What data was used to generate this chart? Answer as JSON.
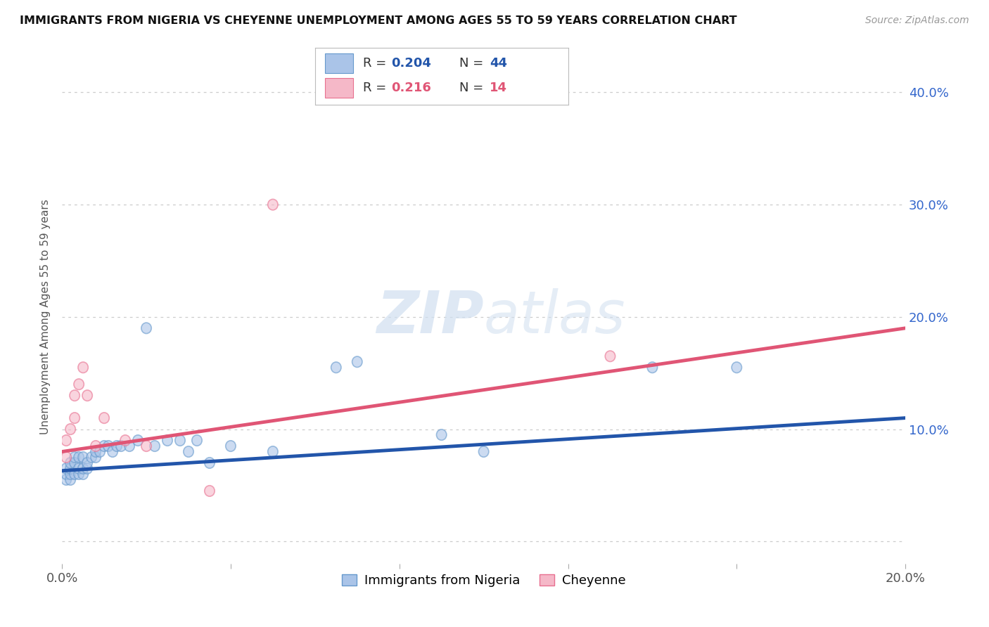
{
  "title": "IMMIGRANTS FROM NIGERIA VS CHEYENNE UNEMPLOYMENT AMONG AGES 55 TO 59 YEARS CORRELATION CHART",
  "source": "Source: ZipAtlas.com",
  "ylabel": "Unemployment Among Ages 55 to 59 years",
  "xlim": [
    0.0,
    0.2
  ],
  "ylim": [
    -0.02,
    0.42
  ],
  "yticks": [
    0.0,
    0.1,
    0.2,
    0.3,
    0.4
  ],
  "xticks": [
    0.0,
    0.04,
    0.08,
    0.12,
    0.16,
    0.2
  ],
  "blue_color": "#aac4e8",
  "blue_edge_color": "#6699cc",
  "pink_color": "#f5b8c8",
  "pink_edge_color": "#e87090",
  "blue_line_color": "#2255aa",
  "pink_line_color": "#e05575",
  "right_tick_color": "#3366cc",
  "watermark_color": "#d0dff0",
  "blue_x": [
    0.001,
    0.001,
    0.001,
    0.002,
    0.002,
    0.002,
    0.002,
    0.003,
    0.003,
    0.003,
    0.004,
    0.004,
    0.004,
    0.005,
    0.005,
    0.005,
    0.006,
    0.006,
    0.007,
    0.008,
    0.008,
    0.009,
    0.01,
    0.011,
    0.012,
    0.013,
    0.014,
    0.016,
    0.018,
    0.02,
    0.022,
    0.025,
    0.028,
    0.03,
    0.032,
    0.035,
    0.04,
    0.05,
    0.065,
    0.07,
    0.09,
    0.1,
    0.14,
    0.16
  ],
  "blue_y": [
    0.055,
    0.06,
    0.065,
    0.055,
    0.06,
    0.065,
    0.07,
    0.06,
    0.07,
    0.075,
    0.06,
    0.065,
    0.075,
    0.06,
    0.065,
    0.075,
    0.065,
    0.07,
    0.075,
    0.075,
    0.08,
    0.08,
    0.085,
    0.085,
    0.08,
    0.085,
    0.085,
    0.085,
    0.09,
    0.19,
    0.085,
    0.09,
    0.09,
    0.08,
    0.09,
    0.07,
    0.085,
    0.08,
    0.155,
    0.16,
    0.095,
    0.08,
    0.155,
    0.155
  ],
  "pink_x": [
    0.001,
    0.001,
    0.002,
    0.003,
    0.003,
    0.004,
    0.005,
    0.006,
    0.008,
    0.01,
    0.015,
    0.02,
    0.035,
    0.05,
    0.13
  ],
  "pink_y": [
    0.075,
    0.09,
    0.1,
    0.11,
    0.13,
    0.14,
    0.155,
    0.13,
    0.085,
    0.11,
    0.09,
    0.085,
    0.045,
    0.3,
    0.165
  ],
  "blue_trend_x": [
    0.0,
    0.2
  ],
  "blue_trend_y": [
    0.063,
    0.11
  ],
  "pink_trend_x": [
    0.0,
    0.2
  ],
  "pink_trend_y": [
    0.08,
    0.19
  ]
}
